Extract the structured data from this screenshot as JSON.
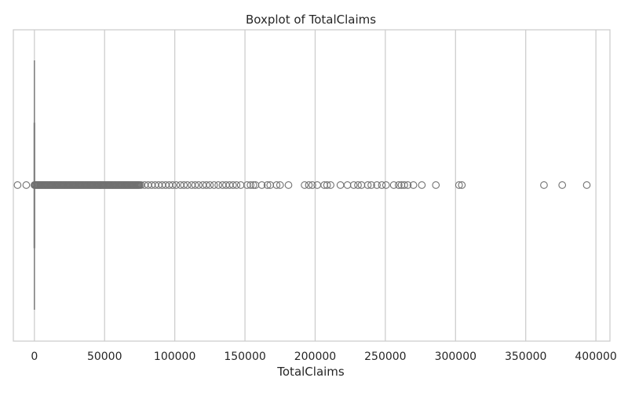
{
  "chart_data": {
    "type": "boxplot",
    "orientation": "horizontal",
    "title": "Boxplot of TotalClaims",
    "xlabel": "TotalClaims",
    "ylabel": "",
    "xlim": [
      -15000,
      410000
    ],
    "xticks": [
      0,
      50000,
      100000,
      150000,
      200000,
      250000,
      300000,
      350000,
      400000
    ],
    "xtick_labels": [
      "0",
      "50000",
      "100000",
      "150000",
      "200000",
      "250000",
      "300000",
      "350000",
      "400000"
    ],
    "grid": "vertical",
    "box": {
      "q1": 0,
      "median": 0,
      "q3": 0,
      "whisker_low": 0,
      "whisker_high": 0
    },
    "outliers_dense_range": [
      0,
      75000
    ],
    "outliers": [
      -12000,
      -5800,
      76000,
      78500,
      81000,
      83500,
      86000,
      88500,
      91000,
      93500,
      96000,
      98500,
      101000,
      104000,
      106500,
      109000,
      112000,
      114500,
      117000,
      120000,
      122500,
      125000,
      128000,
      131000,
      134000,
      136500,
      139000,
      141500,
      144000,
      147000,
      151500,
      154000,
      156000,
      157500,
      162000,
      166000,
      168000,
      172500,
      175000,
      181000,
      192500,
      195500,
      198000,
      201500,
      206500,
      208500,
      211000,
      218000,
      223000,
      227500,
      230500,
      233000,
      237500,
      240000,
      244000,
      247500,
      250500,
      256000,
      259500,
      261500,
      263500,
      266000,
      270000,
      276000,
      286000,
      302500,
      304500,
      363000,
      376000,
      393500
    ],
    "colors": {
      "box": "#808080",
      "grid": "#cccccc",
      "frame": "#cccccc",
      "marker_edge": "#707070"
    }
  }
}
